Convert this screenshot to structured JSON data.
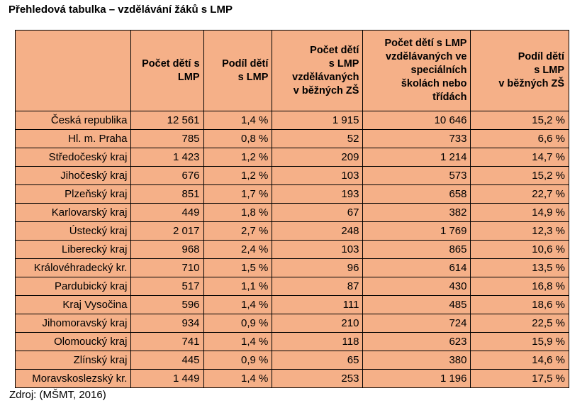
{
  "title": "Přehledová tabulka – vzdělávání žáků s LMP",
  "table": {
    "headers": [
      [
        ""
      ],
      [
        "Počet dětí s",
        "LMP"
      ],
      [
        "Podíl dětí",
        "s LMP"
      ],
      [
        "Počet dětí",
        "s LMP",
        "vzdělávaných",
        "v běžných ZŠ"
      ],
      [
        "Počet dětí s LMP",
        "vzdělávaných ve",
        "speciálních",
        "školách nebo",
        "třídách"
      ],
      [
        "Podíl dětí",
        "s LMP",
        "v běžných ZŠ"
      ]
    ],
    "rows": [
      [
        "Česká republika",
        "12 561",
        "1,4 %",
        "1 915",
        "10 646",
        "15,2 %"
      ],
      [
        "Hl. m. Praha",
        "785",
        "0,8 %",
        "52",
        "733",
        "6,6 %"
      ],
      [
        "Středočeský kraj",
        "1 423",
        "1,2 %",
        "209",
        "1 214",
        "14,7 %"
      ],
      [
        "Jihočeský kraj",
        "676",
        "1,2 %",
        "103",
        "573",
        "15,2 %"
      ],
      [
        "Plzeňský kraj",
        "851",
        "1,7 %",
        "193",
        "658",
        "22,7 %"
      ],
      [
        "Karlovarský kraj",
        "449",
        "1,8 %",
        "67",
        "382",
        "14,9 %"
      ],
      [
        "Ústecký kraj",
        "2 017",
        "2,7 %",
        "248",
        "1 769",
        "12,3 %"
      ],
      [
        "Liberecký kraj",
        "968",
        "2,4 %",
        "103",
        "865",
        "10,6 %"
      ],
      [
        "Královéhradecký kr.",
        "710",
        "1,5 %",
        "96",
        "614",
        "13,5 %"
      ],
      [
        "Pardubický kraj",
        "517",
        "1,1 %",
        "87",
        "430",
        "16,8 %"
      ],
      [
        "Kraj Vysočina",
        "596",
        "1,4 %",
        "111",
        "485",
        "18,6 %"
      ],
      [
        "Jihomoravský kraj",
        "934",
        "0,9 %",
        "210",
        "724",
        "22,5 %"
      ],
      [
        "Olomoucký kraj",
        "741",
        "1,4 %",
        "118",
        "623",
        "15,9 %"
      ],
      [
        "Zlínský kraj",
        "445",
        "0,9 %",
        "65",
        "380",
        "14,6 %"
      ],
      [
        "Moravskoslezský kr.",
        "1 449",
        "1,4 %",
        "253",
        "1 196",
        "17,5 %"
      ]
    ]
  },
  "source": "Zdroj: (MŠMT, 2016)",
  "colors": {
    "table_fill": "#f5b088",
    "border": "#000000"
  }
}
